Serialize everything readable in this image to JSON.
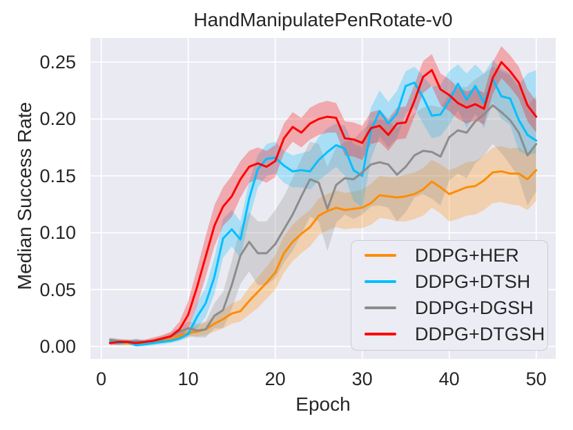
{
  "colors": {
    "figure_background": "#ffffff",
    "axes_background": "#eaeaf2",
    "grid": "#ffffff",
    "text": "#262626",
    "legend_background": "#ececf4",
    "legend_border": "#cbcbd6"
  },
  "chart_data": {
    "type": "line",
    "title": "HandManipulatePenRotate-v0",
    "xlabel": "Epoch",
    "ylabel": "Median Success Rate",
    "grid": true,
    "legend_position": "lower right",
    "band_alpha": 0.28,
    "xlim": [
      -1.2,
      52.2
    ],
    "ylim": [
      -0.0103,
      0.2712
    ],
    "xticks": [
      0,
      10,
      20,
      30,
      40,
      50
    ],
    "yticks": [
      0,
      0.05,
      0.1,
      0.15,
      0.2,
      0.25
    ],
    "ytick_labels": [
      "0.00",
      "0.05",
      "0.10",
      "0.15",
      "0.20",
      "0.25"
    ],
    "x": [
      1,
      2,
      3,
      4,
      5,
      6,
      7,
      8,
      9,
      10,
      11,
      12,
      13,
      14,
      15,
      16,
      17,
      18,
      19,
      20,
      21,
      22,
      23,
      24,
      25,
      26,
      27,
      28,
      29,
      30,
      31,
      32,
      33,
      34,
      35,
      36,
      37,
      38,
      39,
      40,
      41,
      42,
      43,
      44,
      45,
      46,
      47,
      48,
      49,
      50
    ],
    "series": [
      {
        "name": "DDPG+HER",
        "color": "#ff8c00",
        "values": [
          0.004,
          0.003,
          0.003,
          0.002,
          0.003,
          0.004,
          0.005,
          0.006,
          0.009,
          0.012,
          0.013,
          0.015,
          0.02,
          0.024,
          0.029,
          0.031,
          0.04,
          0.048,
          0.056,
          0.065,
          0.082,
          0.092,
          0.099,
          0.105,
          0.115,
          0.119,
          0.122,
          0.12,
          0.121,
          0.122,
          0.126,
          0.133,
          0.132,
          0.131,
          0.132,
          0.134,
          0.138,
          0.145,
          0.14,
          0.134,
          0.137,
          0.14,
          0.141,
          0.146,
          0.153,
          0.154,
          0.152,
          0.152,
          0.147,
          0.155
        ],
        "band_lower": [
          0.002,
          0.001,
          0.001,
          0.001,
          0.001,
          0.002,
          0.003,
          0.004,
          0.006,
          0.008,
          0.009,
          0.01,
          0.013,
          0.016,
          0.02,
          0.022,
          0.028,
          0.034,
          0.042,
          0.05,
          0.065,
          0.075,
          0.082,
          0.088,
          0.098,
          0.102,
          0.105,
          0.103,
          0.104,
          0.104,
          0.107,
          0.113,
          0.112,
          0.11,
          0.11,
          0.112,
          0.115,
          0.122,
          0.117,
          0.11,
          0.112,
          0.115,
          0.116,
          0.12,
          0.126,
          0.127,
          0.125,
          0.124,
          0.12,
          0.128
        ],
        "band_upper": [
          0.006,
          0.005,
          0.005,
          0.004,
          0.005,
          0.006,
          0.008,
          0.009,
          0.013,
          0.017,
          0.018,
          0.021,
          0.027,
          0.032,
          0.038,
          0.041,
          0.052,
          0.061,
          0.07,
          0.08,
          0.097,
          0.107,
          0.114,
          0.12,
          0.13,
          0.134,
          0.137,
          0.135,
          0.136,
          0.138,
          0.143,
          0.15,
          0.149,
          0.149,
          0.151,
          0.153,
          0.157,
          0.164,
          0.16,
          0.155,
          0.158,
          0.162,
          0.163,
          0.168,
          0.175,
          0.176,
          0.174,
          0.175,
          0.17,
          0.178
        ]
      },
      {
        "name": "DDPG+DTSH",
        "color": "#00bfff",
        "values": [
          0.004,
          0.003,
          0.004,
          0.001,
          0.002,
          0.003,
          0.004,
          0.005,
          0.007,
          0.011,
          0.026,
          0.038,
          0.061,
          0.095,
          0.103,
          0.094,
          0.13,
          0.156,
          0.165,
          0.166,
          0.159,
          0.154,
          0.155,
          0.154,
          0.164,
          0.171,
          0.177,
          0.174,
          0.155,
          0.15,
          0.19,
          0.207,
          0.196,
          0.205,
          0.229,
          0.232,
          0.219,
          0.203,
          0.204,
          0.216,
          0.231,
          0.217,
          0.229,
          0.214,
          0.235,
          0.22,
          0.218,
          0.199,
          0.186,
          0.181
        ],
        "band_lower": [
          0.002,
          0.001,
          0.002,
          0,
          0,
          0.001,
          0.002,
          0.003,
          0.005,
          0.008,
          0.016,
          0.026,
          0.046,
          0.078,
          0.088,
          0.078,
          0.112,
          0.14,
          0.15,
          0.152,
          0.144,
          0.14,
          0.14,
          0.138,
          0.146,
          0.152,
          0.158,
          0.15,
          0.128,
          0.122,
          0.165,
          0.185,
          0.175,
          0.183,
          0.205,
          0.21,
          0.196,
          0.183,
          0.185,
          0.195,
          0.208,
          0.192,
          0.205,
          0.192,
          0.215,
          0.2,
          0.195,
          0.172,
          0.168,
          0.17
        ],
        "band_upper": [
          0.006,
          0.005,
          0.006,
          0.003,
          0.004,
          0.005,
          0.006,
          0.007,
          0.01,
          0.015,
          0.038,
          0.052,
          0.078,
          0.112,
          0.12,
          0.11,
          0.145,
          0.168,
          0.178,
          0.18,
          0.172,
          0.168,
          0.17,
          0.172,
          0.184,
          0.192,
          0.196,
          0.194,
          0.178,
          0.175,
          0.21,
          0.225,
          0.215,
          0.225,
          0.242,
          0.246,
          0.238,
          0.228,
          0.23,
          0.242,
          0.248,
          0.24,
          0.248,
          0.24,
          0.252,
          0.244,
          0.24,
          0.23,
          0.24,
          0.243
        ]
      },
      {
        "name": "DDPG+DGSH",
        "color": "#8c8c8c",
        "values": [
          0.006,
          0.005,
          0.004,
          0.005,
          0.004,
          0.005,
          0.006,
          0.009,
          0.013,
          0.016,
          0.014,
          0.015,
          0.027,
          0.032,
          0.054,
          0.08,
          0.092,
          0.082,
          0.082,
          0.09,
          0.103,
          0.116,
          0.132,
          0.147,
          0.144,
          0.121,
          0.142,
          0.148,
          0.147,
          0.153,
          0.16,
          0.162,
          0.16,
          0.151,
          0.158,
          0.168,
          0.172,
          0.171,
          0.167,
          0.184,
          0.19,
          0.188,
          0.198,
          0.204,
          0.212,
          0.206,
          0.199,
          0.188,
          0.168,
          0.178
        ],
        "band_lower": [
          0.004,
          0.003,
          0.002,
          0.003,
          0.002,
          0.003,
          0.003,
          0.006,
          0.009,
          0.01,
          0.008,
          0.008,
          0.016,
          0.016,
          0.033,
          0.055,
          0.066,
          0.054,
          0.054,
          0.06,
          0.074,
          0.084,
          0.099,
          0.114,
          0.11,
          0.084,
          0.109,
          0.116,
          0.112,
          0.116,
          0.123,
          0.124,
          0.122,
          0.11,
          0.118,
          0.131,
          0.134,
          0.13,
          0.124,
          0.146,
          0.152,
          0.148,
          0.161,
          0.168,
          0.178,
          0.17,
          0.16,
          0.148,
          0.124,
          0.136
        ],
        "band_upper": [
          0.008,
          0.007,
          0.006,
          0.007,
          0.006,
          0.007,
          0.009,
          0.012,
          0.017,
          0.022,
          0.02,
          0.022,
          0.038,
          0.048,
          0.075,
          0.105,
          0.118,
          0.11,
          0.11,
          0.12,
          0.132,
          0.148,
          0.165,
          0.18,
          0.178,
          0.158,
          0.175,
          0.18,
          0.182,
          0.19,
          0.197,
          0.2,
          0.198,
          0.192,
          0.198,
          0.205,
          0.21,
          0.212,
          0.21,
          0.222,
          0.228,
          0.228,
          0.235,
          0.24,
          0.246,
          0.242,
          0.238,
          0.228,
          0.212,
          0.22
        ]
      },
      {
        "name": "DDPG+DTGSH",
        "color": "#ff0000",
        "values": [
          0.003,
          0.004,
          0.004,
          0.003,
          0.004,
          0.005,
          0.007,
          0.009,
          0.015,
          0.028,
          0.052,
          0.079,
          0.106,
          0.123,
          0.132,
          0.147,
          0.158,
          0.161,
          0.158,
          0.163,
          0.183,
          0.193,
          0.188,
          0.196,
          0.2,
          0.202,
          0.201,
          0.183,
          0.182,
          0.179,
          0.192,
          0.194,
          0.186,
          0.196,
          0.197,
          0.216,
          0.237,
          0.243,
          0.226,
          0.221,
          0.214,
          0.21,
          0.213,
          0.209,
          0.236,
          0.25,
          0.242,
          0.232,
          0.212,
          0.202
        ],
        "band_lower": [
          0.001,
          0.002,
          0.002,
          0.001,
          0.002,
          0.003,
          0.004,
          0.005,
          0.008,
          0.016,
          0.036,
          0.061,
          0.088,
          0.106,
          0.114,
          0.131,
          0.144,
          0.147,
          0.144,
          0.149,
          0.17,
          0.18,
          0.175,
          0.182,
          0.186,
          0.188,
          0.188,
          0.168,
          0.167,
          0.164,
          0.178,
          0.18,
          0.172,
          0.182,
          0.183,
          0.202,
          0.223,
          0.229,
          0.212,
          0.207,
          0.2,
          0.196,
          0.199,
          0.195,
          0.222,
          0.236,
          0.228,
          0.218,
          0.198,
          0.188
        ],
        "band_upper": [
          0.005,
          0.006,
          0.006,
          0.005,
          0.006,
          0.008,
          0.01,
          0.013,
          0.022,
          0.04,
          0.068,
          0.097,
          0.124,
          0.14,
          0.15,
          0.163,
          0.172,
          0.175,
          0.172,
          0.177,
          0.196,
          0.206,
          0.201,
          0.21,
          0.214,
          0.216,
          0.214,
          0.198,
          0.197,
          0.194,
          0.206,
          0.208,
          0.2,
          0.21,
          0.211,
          0.23,
          0.251,
          0.257,
          0.24,
          0.235,
          0.228,
          0.224,
          0.227,
          0.223,
          0.25,
          0.264,
          0.256,
          0.246,
          0.226,
          0.216
        ]
      }
    ]
  }
}
